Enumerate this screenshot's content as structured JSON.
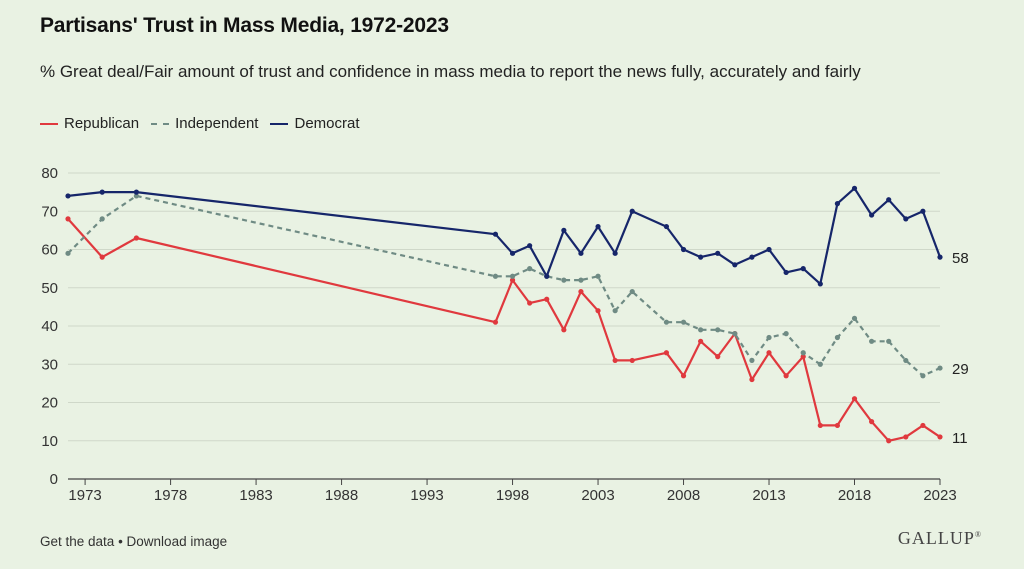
{
  "header": {
    "title": "Partisans' Trust in Mass Media, 1972-2023",
    "subtitle": "% Great deal/Fair amount of trust and confidence in mass media to report the news fully, accurately and fairly"
  },
  "footer": {
    "get_data": "Get the data",
    "separator": " • ",
    "download": "Download image",
    "brand": "GALLUP"
  },
  "chart_data": {
    "type": "line",
    "title": "Partisans' Trust in Mass Media, 1972-2023",
    "subtitle": "% Great deal/Fair amount of trust and confidence in mass media to report the news fully, accurately and fairly",
    "xlabel": "",
    "ylabel": "",
    "xlim": [
      1972,
      2023
    ],
    "ylim": [
      0,
      80
    ],
    "xticks": [
      1973,
      1978,
      1983,
      1988,
      1993,
      1998,
      2003,
      2008,
      2013,
      2018,
      2023
    ],
    "yticks": [
      0,
      10,
      20,
      30,
      40,
      50,
      60,
      70,
      80
    ],
    "grid": true,
    "legend_position": "top-left",
    "series": [
      {
        "name": "Republican",
        "color": "#e0393e",
        "dash": "solid",
        "end_label": "11",
        "points": [
          [
            1972,
            68
          ],
          [
            1974,
            58
          ],
          [
            1976,
            63
          ],
          [
            1997,
            41
          ],
          [
            1998,
            52
          ],
          [
            1999,
            46
          ],
          [
            2000,
            47
          ],
          [
            2001,
            39
          ],
          [
            2002,
            49
          ],
          [
            2003,
            44
          ],
          [
            2004,
            31
          ],
          [
            2005,
            31
          ],
          [
            2007,
            33
          ],
          [
            2008,
            27
          ],
          [
            2009,
            36
          ],
          [
            2010,
            32
          ],
          [
            2011,
            38
          ],
          [
            2012,
            26
          ],
          [
            2013,
            33
          ],
          [
            2014,
            27
          ],
          [
            2015,
            32
          ],
          [
            2016,
            14
          ],
          [
            2017,
            14
          ],
          [
            2018,
            21
          ],
          [
            2019,
            15
          ],
          [
            2020,
            10
          ],
          [
            2021,
            11
          ],
          [
            2022,
            14
          ],
          [
            2023,
            11
          ]
        ]
      },
      {
        "name": "Independent",
        "color": "#6f8b84",
        "dash": "dashed",
        "end_label": "29",
        "points": [
          [
            1972,
            59
          ],
          [
            1974,
            68
          ],
          [
            1976,
            74
          ],
          [
            1997,
            53
          ],
          [
            1998,
            53
          ],
          [
            1999,
            55
          ],
          [
            2000,
            53
          ],
          [
            2001,
            52
          ],
          [
            2002,
            52
          ],
          [
            2003,
            53
          ],
          [
            2004,
            44
          ],
          [
            2005,
            49
          ],
          [
            2007,
            41
          ],
          [
            2008,
            41
          ],
          [
            2009,
            39
          ],
          [
            2010,
            39
          ],
          [
            2011,
            38
          ],
          [
            2012,
            31
          ],
          [
            2013,
            37
          ],
          [
            2014,
            38
          ],
          [
            2015,
            33
          ],
          [
            2016,
            30
          ],
          [
            2017,
            37
          ],
          [
            2018,
            42
          ],
          [
            2019,
            36
          ],
          [
            2020,
            36
          ],
          [
            2021,
            31
          ],
          [
            2022,
            27
          ],
          [
            2023,
            29
          ]
        ]
      },
      {
        "name": "Democrat",
        "color": "#16266a",
        "dash": "solid",
        "end_label": "58",
        "points": [
          [
            1972,
            74
          ],
          [
            1974,
            75
          ],
          [
            1976,
            75
          ],
          [
            1997,
            64
          ],
          [
            1998,
            59
          ],
          [
            1999,
            61
          ],
          [
            2000,
            53
          ],
          [
            2001,
            65
          ],
          [
            2002,
            59
          ],
          [
            2003,
            66
          ],
          [
            2004,
            59
          ],
          [
            2005,
            70
          ],
          [
            2007,
            66
          ],
          [
            2008,
            60
          ],
          [
            2009,
            58
          ],
          [
            2010,
            59
          ],
          [
            2011,
            56
          ],
          [
            2012,
            58
          ],
          [
            2013,
            60
          ],
          [
            2014,
            54
          ],
          [
            2015,
            55
          ],
          [
            2016,
            51
          ],
          [
            2017,
            72
          ],
          [
            2018,
            76
          ],
          [
            2019,
            69
          ],
          [
            2020,
            73
          ],
          [
            2021,
            68
          ],
          [
            2022,
            70
          ],
          [
            2023,
            58
          ]
        ]
      }
    ]
  }
}
